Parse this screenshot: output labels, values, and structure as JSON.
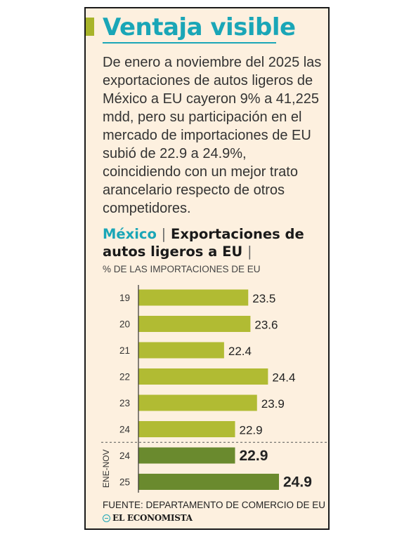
{
  "header": {
    "title": "Ventaja visible",
    "body": "De enero a noviembre del 2025 las exportaciones de autos ligeros de México a EU cayeron 9% a 41,225 mdd, pero su participación en el mercado de importaciones de EU subió de 22.9 a 24.9%, coincidiendo con un mejor trato arancelario respecto de otros competidores."
  },
  "chart_heading": {
    "country": "México",
    "separator": "|",
    "title": "Exportaciones de autos ligeros a EU",
    "trailing_separator": "|",
    "subtitle": "% DE LAS IMPORTACIONES DE EU"
  },
  "chart_data": {
    "type": "bar",
    "orientation": "horizontal",
    "categories": [
      "19",
      "20",
      "21",
      "22",
      "23",
      "24",
      "24",
      "25"
    ],
    "values": [
      23.5,
      23.6,
      22.4,
      24.4,
      23.9,
      22.9,
      22.9,
      24.9
    ],
    "group_label": "ENE-NOV",
    "group_start_index": 6,
    "ylabel": "% DE LAS IMPORTACIONES DE EU",
    "colors": {
      "annual": "#b1bb33",
      "ene_nov": "#6a8a2e",
      "axis": "#333333",
      "divider": "#555555"
    },
    "grid": false
  },
  "footer": {
    "source": "FUENTE: DEPARTAMENTO DE COMERCIO DE EU",
    "brand": "EL ECONOMISTA",
    "brand_icon": "el-economista-logo-icon"
  }
}
